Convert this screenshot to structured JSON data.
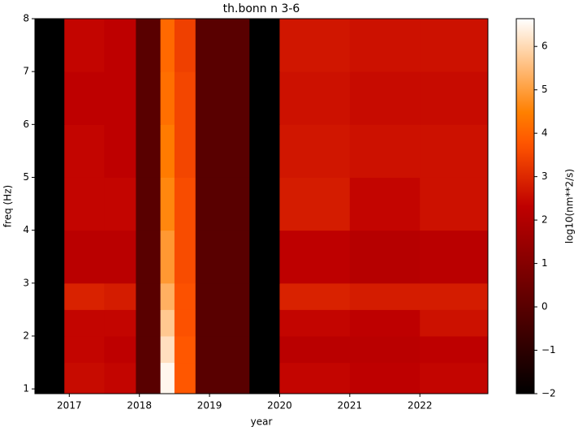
{
  "chart_data": {
    "type": "heatmap",
    "title": "th.bonn n 3-6",
    "x_label": "year",
    "y_label": "freq (Hz)",
    "colorbar_label": "log10(nm**2/s)",
    "colormap": "gist_heat",
    "x": [
      2016.51,
      2016.93,
      2017.5,
      2017.95,
      2018.3,
      2018.5,
      2018.8,
      2019.57,
      2020,
      2021,
      2022,
      2022.97
    ],
    "y": [
      0.91,
      1.5,
      2,
      2.5,
      3,
      4,
      5,
      6,
      7,
      8
    ],
    "values": [
      [
        -2,
        2.5,
        2.4,
        0,
        6.5,
        3.8,
        0,
        -2,
        2.4,
        2.3,
        2.4
      ],
      [
        -2,
        2.4,
        2.3,
        0,
        6.1,
        3.8,
        0,
        -2,
        2.2,
        2.2,
        2.3
      ],
      [
        -2,
        2.4,
        2.4,
        0,
        5.7,
        3.7,
        0,
        -2,
        2.4,
        2.3,
        2.6
      ],
      [
        -2,
        2.9,
        2.8,
        0,
        5.3,
        3.7,
        0,
        -2,
        2.9,
        2.8,
        2.8
      ],
      [
        -2,
        2.2,
        2.2,
        0,
        4.9,
        3.6,
        0,
        -2,
        2.3,
        2.1,
        2.2
      ],
      [
        -2,
        2.4,
        2.4,
        0,
        4.6,
        3.6,
        0,
        -2,
        2.8,
        2.4,
        2.6
      ],
      [
        -2,
        2.4,
        2.3,
        0,
        4.4,
        3.5,
        0,
        -2,
        2.7,
        2.6,
        2.6
      ],
      [
        -2,
        2.3,
        2.3,
        0,
        4.2,
        3.5,
        0,
        -2,
        2.6,
        2.5,
        2.5
      ],
      [
        -2,
        2.4,
        2.3,
        0,
        4.1,
        3.4,
        0,
        -2,
        2.7,
        2.6,
        2.6
      ]
    ],
    "xlim": [
      2016.51,
      2022.97
    ],
    "ylim": [
      0.91,
      8
    ],
    "clim": [
      -2,
      6.64
    ],
    "xticks": [
      2017,
      2018,
      2019,
      2020,
      2021,
      2022
    ],
    "yticks": [
      1,
      2,
      3,
      4,
      5,
      6,
      7,
      8
    ],
    "cticks": [
      {
        "value": -2,
        "label": "−2"
      },
      {
        "value": -1,
        "label": "−1"
      },
      0,
      1,
      2,
      3,
      4,
      5,
      6
    ]
  }
}
